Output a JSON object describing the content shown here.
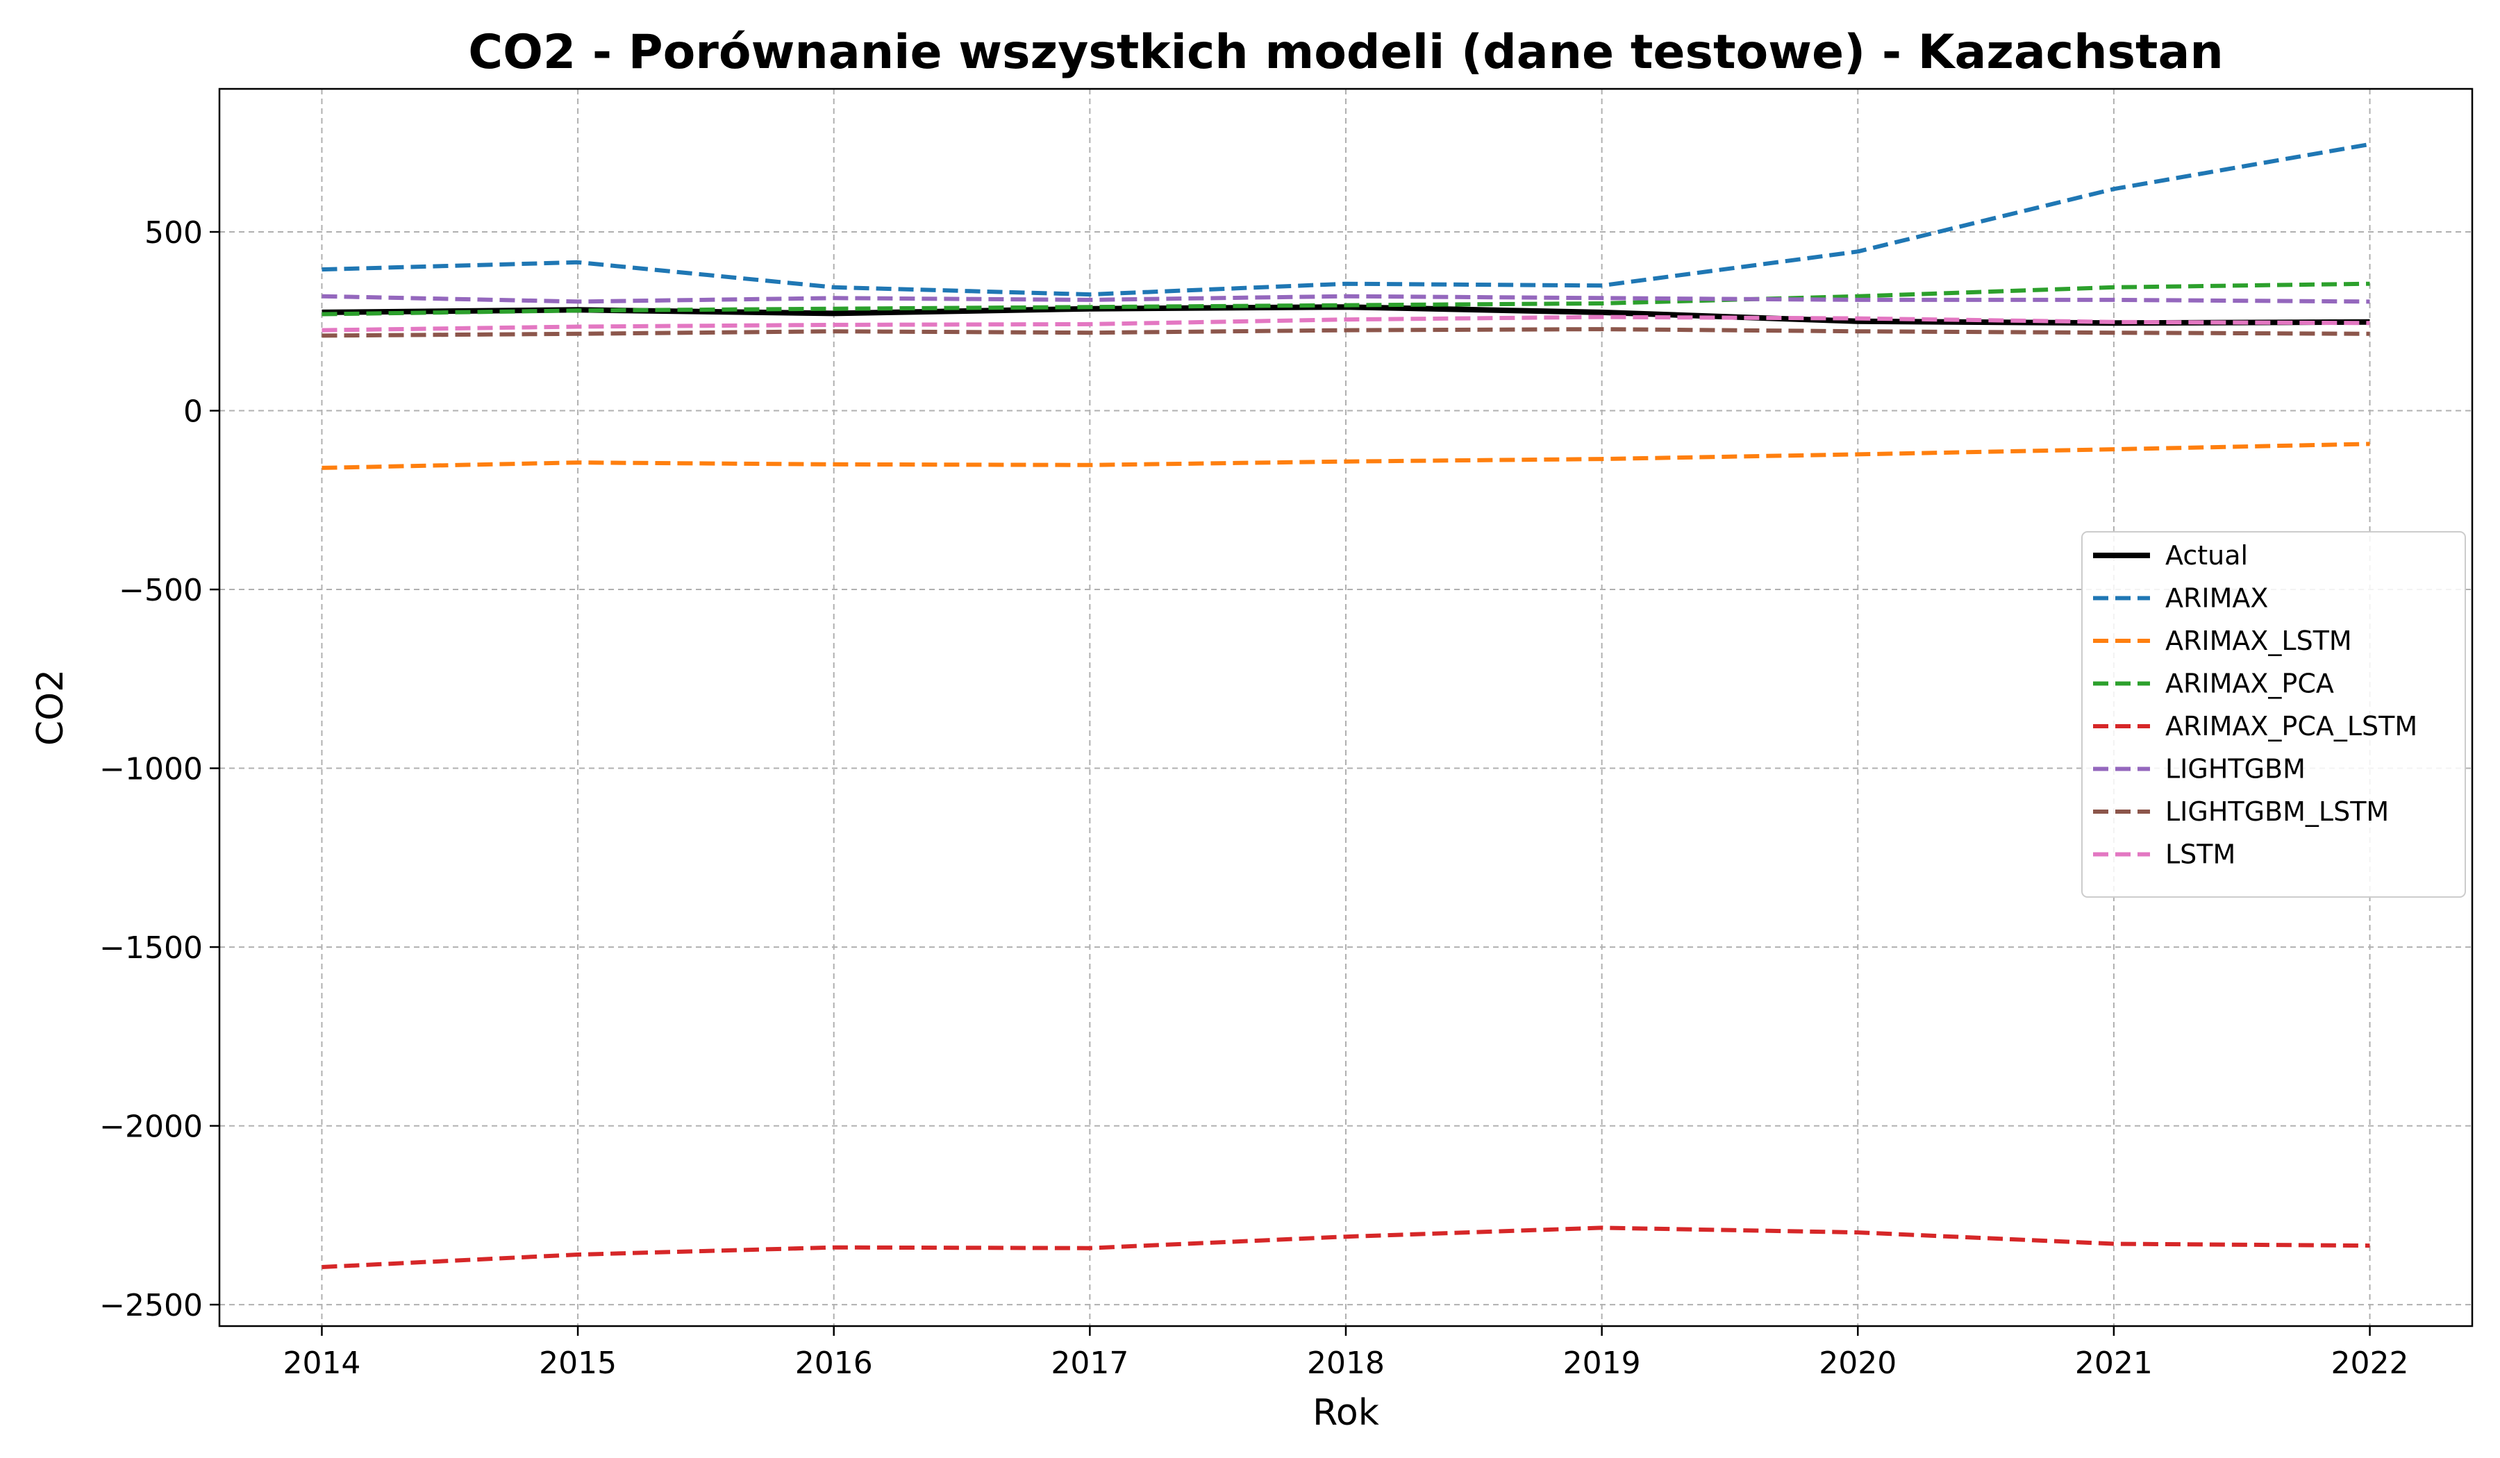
{
  "chart_data": {
    "type": "line",
    "title": "CO2 - Porównanie wszystkich modeli (dane testowe) - Kazachstan",
    "xlabel": "Rok",
    "ylabel": "CO2",
    "x": [
      2014,
      2015,
      2016,
      2017,
      2018,
      2019,
      2020,
      2021,
      2022
    ],
    "x_ticks": [
      "2014",
      "2015",
      "2016",
      "2017",
      "2018",
      "2019",
      "2020",
      "2021",
      "2022"
    ],
    "xlim": [
      2013.6,
      2022.4
    ],
    "ylim": [
      -2560,
      900
    ],
    "y_ticks": [
      -2500,
      -2000,
      -1500,
      -1000,
      -500,
      0,
      500
    ],
    "y_tick_labels": [
      "−2500",
      "−2000",
      "−1500",
      "−1000",
      "−500",
      "0",
      "500"
    ],
    "grid": true,
    "legend_position": "center-right",
    "series": [
      {
        "name": "Actual",
        "color": "#000000",
        "style": "solid",
        "values": [
          275,
          282,
          272,
          285,
          290,
          275,
          250,
          245,
          248
        ]
      },
      {
        "name": "ARIMAX",
        "color": "#1f77b4",
        "style": "dashed",
        "values": [
          395,
          415,
          345,
          325,
          355,
          350,
          445,
          620,
          745
        ]
      },
      {
        "name": "ARIMAX_LSTM",
        "color": "#ff7f0e",
        "style": "dashed",
        "values": [
          -160,
          -145,
          -150,
          -152,
          -142,
          -135,
          -122,
          -108,
          -93
        ]
      },
      {
        "name": "ARIMAX_PCA",
        "color": "#2ca02c",
        "style": "dashed",
        "values": [
          270,
          280,
          285,
          290,
          295,
          300,
          320,
          345,
          355
        ]
      },
      {
        "name": "ARIMAX_PCA_LSTM",
        "color": "#d62728",
        "style": "dashed",
        "values": [
          -2395,
          -2360,
          -2340,
          -2342,
          -2310,
          -2285,
          -2298,
          -2330,
          -2335
        ]
      },
      {
        "name": "LIGHTGBM",
        "color": "#9467bd",
        "style": "dashed",
        "values": [
          320,
          305,
          315,
          310,
          320,
          315,
          310,
          310,
          305
        ]
      },
      {
        "name": "LIGHTGBM_LSTM",
        "color": "#8c564b",
        "style": "dashed",
        "values": [
          210,
          215,
          222,
          218,
          225,
          228,
          222,
          218,
          215
        ]
      },
      {
        "name": "LSTM",
        "color": "#e377c2",
        "style": "dashed",
        "values": [
          225,
          235,
          240,
          242,
          255,
          262,
          258,
          248,
          245
        ]
      }
    ]
  }
}
